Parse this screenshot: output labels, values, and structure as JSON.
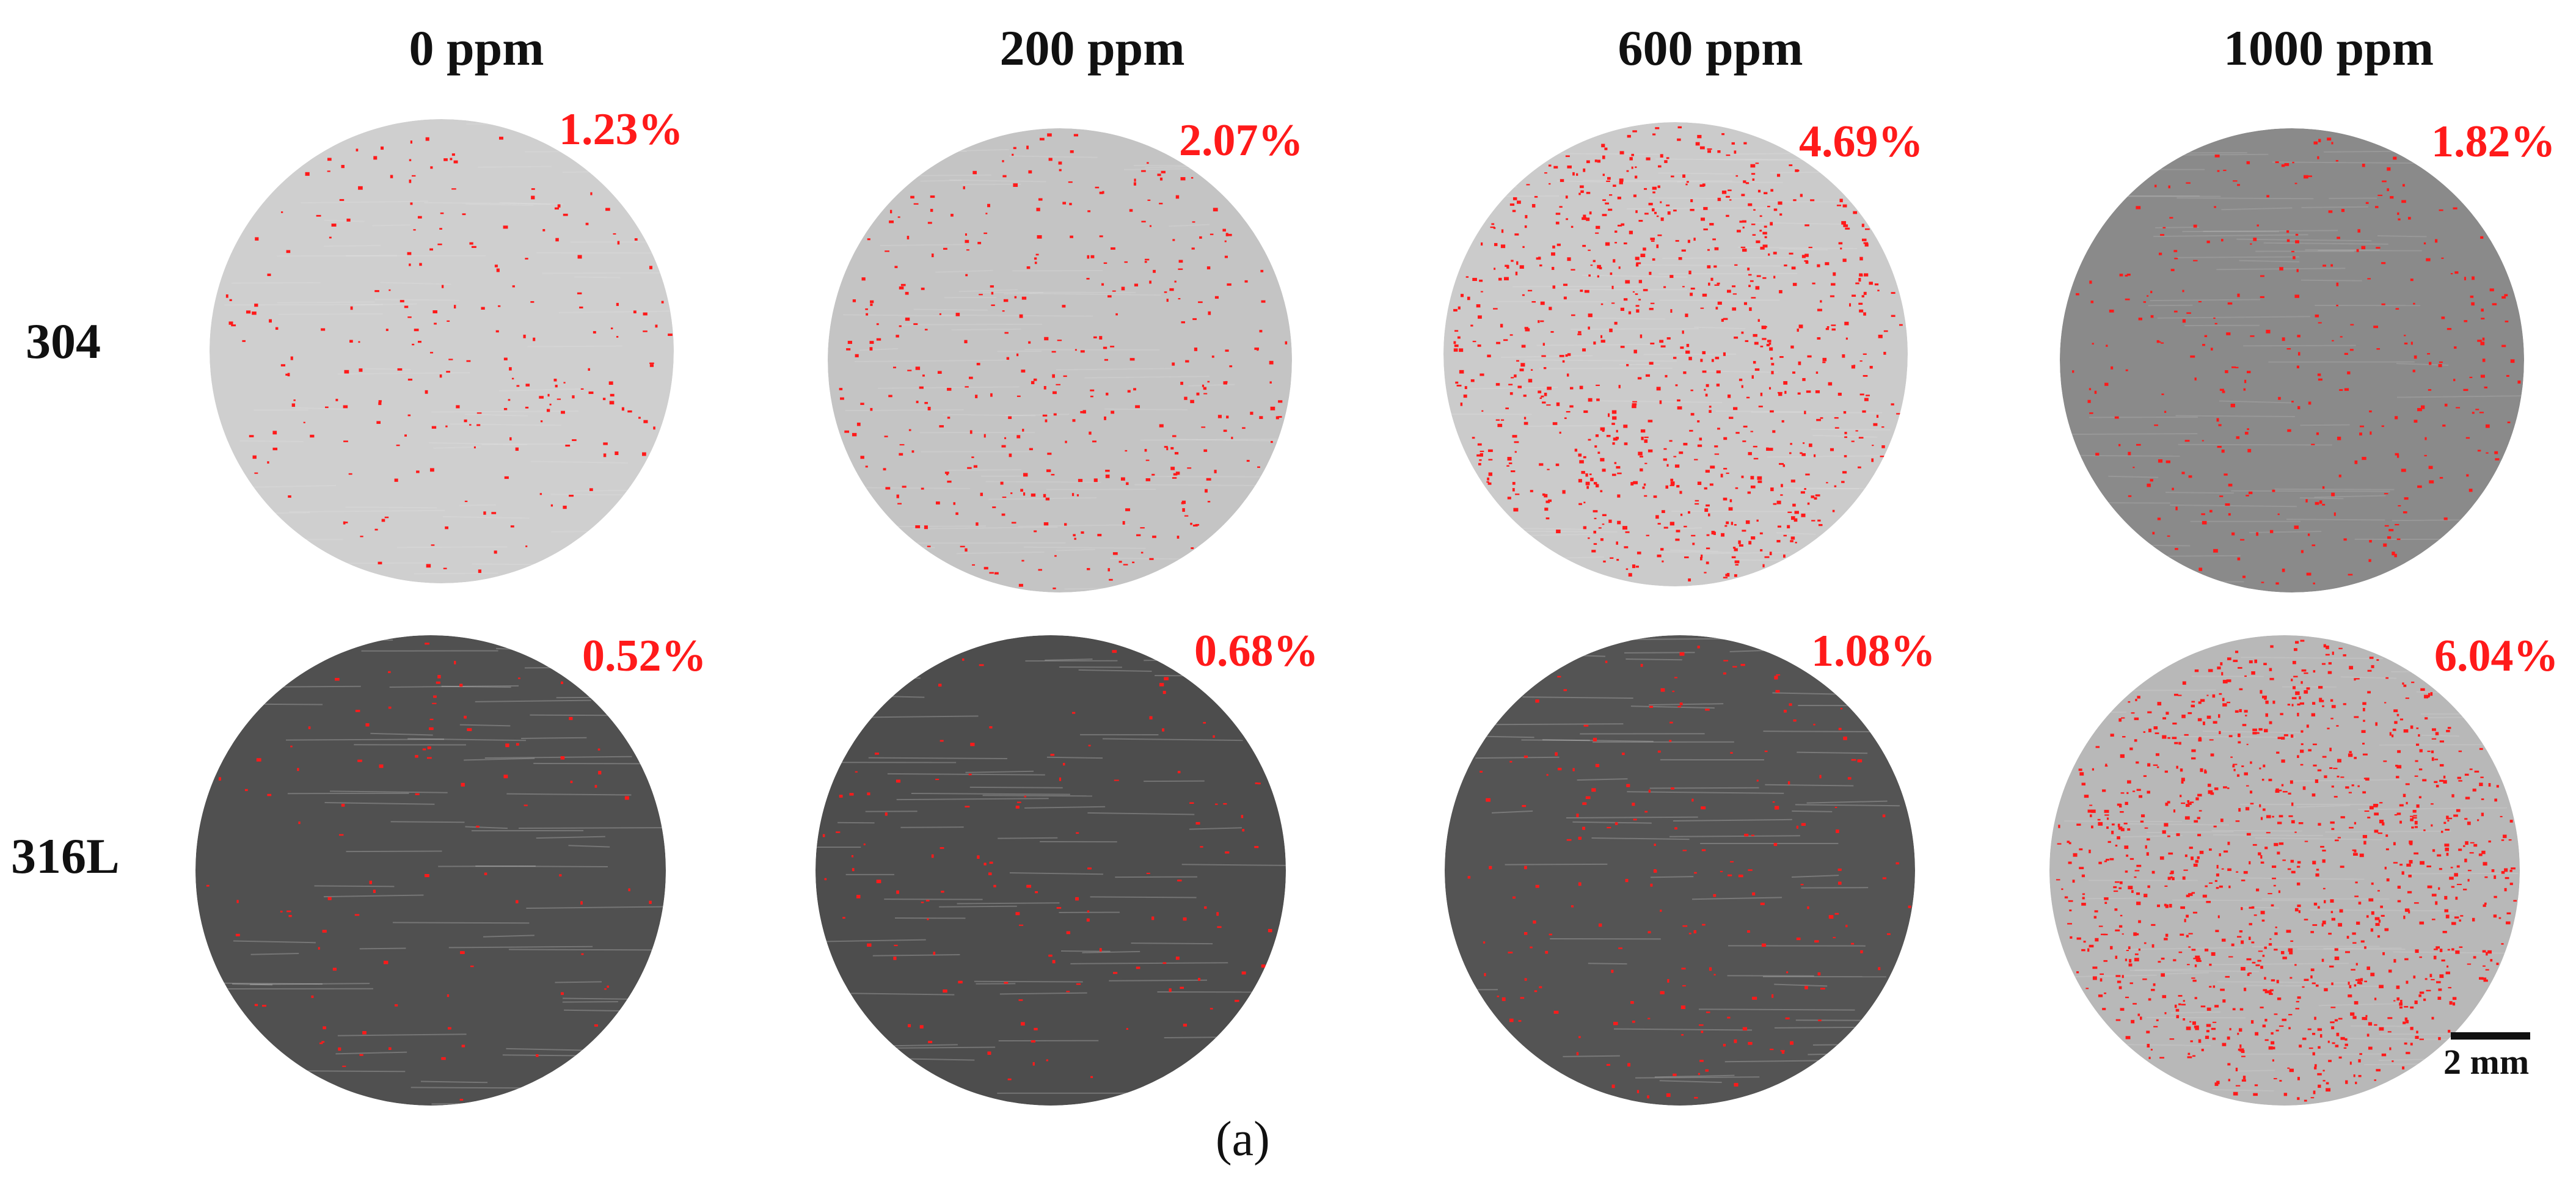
{
  "concentrations": [
    "0 ppm",
    "200 ppm",
    "600 ppm",
    "1000 ppm"
  ],
  "rows": [
    {
      "label": "304",
      "percentages": [
        "1.23%",
        "2.07%",
        "4.69%",
        "1.82%"
      ],
      "surface_tones": [
        "#cfcfcf",
        "#c4c4c4",
        "#cbcbcb",
        "#8a8a8a"
      ]
    },
    {
      "label": "316L",
      "percentages": [
        "0.52%",
        "0.68%",
        "1.08%",
        "6.04%"
      ],
      "surface_tones": [
        "#505050",
        "#4d4d4d",
        "#545454",
        "#b8b8b8"
      ]
    }
  ],
  "marker_color": "#ff1a1a",
  "scale_bar": {
    "label": "2 mm"
  },
  "caption": "(a)"
}
